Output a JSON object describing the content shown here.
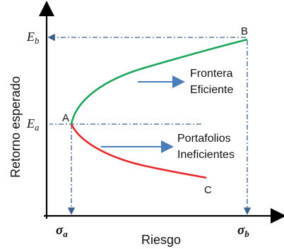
{
  "axes": {
    "ylabel": "Retorno esperado",
    "xlabel": "Riesgo"
  },
  "ticks": {
    "Eb": {
      "main": "E",
      "sub": "b"
    },
    "Ea": {
      "main": "E",
      "sub": "a"
    },
    "sigma_a": {
      "main": "σ",
      "sub": "a"
    },
    "sigma_b": {
      "main": "σ",
      "sub": "b"
    }
  },
  "points": {
    "A": "A",
    "B": "B",
    "C": "C"
  },
  "annotations": {
    "frontier_line1": "Frontera",
    "frontier_line2": "Eficiente",
    "inefficient_line1": "Portafolios",
    "inefficient_line2": "Ineficientes"
  },
  "colors": {
    "efficient": "#1aa55a",
    "inefficient": "#e8262a",
    "arrow": "#4a7ebb",
    "guide": "#3a5f8f"
  }
}
